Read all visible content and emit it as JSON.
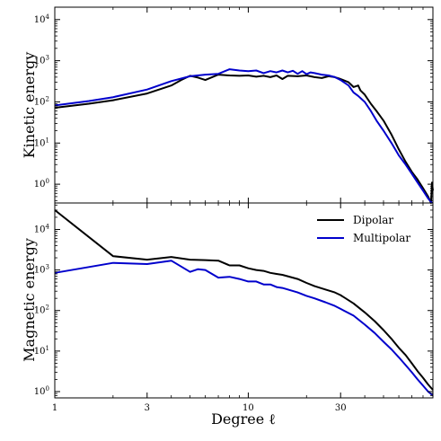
{
  "chart_data": [
    {
      "type": "line",
      "ylabel": "Kinetic energy",
      "xlabel": "",
      "xscale": "log",
      "yscale": "log",
      "xlim": [
        1,
        90
      ],
      "ylim": [
        0.35,
        20000
      ],
      "x_ticks": [],
      "y_ticks": [
        {
          "v": 1,
          "base": "10",
          "exp": "0"
        },
        {
          "v": 10,
          "base": "10",
          "exp": "1"
        },
        {
          "v": 100,
          "base": "10",
          "exp": "2"
        },
        {
          "v": 1000,
          "base": "10",
          "exp": "3"
        },
        {
          "v": 10000,
          "base": "10",
          "exp": "4"
        }
      ],
      "series": [
        {
          "color": "#000000",
          "points": [
            [
              1,
              72
            ],
            [
              1.5,
              90
            ],
            [
              2,
              110
            ],
            [
              3,
              160
            ],
            [
              4,
              250
            ],
            [
              4.5,
              340
            ],
            [
              5,
              430
            ],
            [
              5.5,
              390
            ],
            [
              6,
              340
            ],
            [
              7,
              460
            ],
            [
              8,
              440
            ],
            [
              9,
              430
            ],
            [
              10,
              440
            ],
            [
              11,
              410
            ],
            [
              12,
              430
            ],
            [
              13,
              400
            ],
            [
              14,
              440
            ],
            [
              15,
              360
            ],
            [
              16,
              430
            ],
            [
              18,
              420
            ],
            [
              20,
              440
            ],
            [
              22,
              400
            ],
            [
              24,
              380
            ],
            [
              26,
              420
            ],
            [
              28,
              400
            ],
            [
              30,
              360
            ],
            [
              33,
              300
            ],
            [
              35,
              230
            ],
            [
              37,
              250
            ],
            [
              38,
              190
            ],
            [
              40,
              150
            ],
            [
              43,
              90
            ],
            [
              46,
              60
            ],
            [
              50,
              35
            ],
            [
              55,
              16
            ],
            [
              60,
              7
            ],
            [
              65,
              3.5
            ],
            [
              70,
              2
            ],
            [
              75,
              1.3
            ],
            [
              80,
              0.8
            ],
            [
              85,
              0.5
            ],
            [
              88,
              0.35
            ],
            [
              89,
              1.1
            ],
            [
              90,
              0.7
            ]
          ]
        },
        {
          "color": "#0000cc",
          "points": [
            [
              1,
              82
            ],
            [
              1.5,
              105
            ],
            [
              2,
              130
            ],
            [
              3,
              200
            ],
            [
              4,
              320
            ],
            [
              5,
              420
            ],
            [
              6,
              460
            ],
            [
              7,
              480
            ],
            [
              8,
              620
            ],
            [
              9,
              580
            ],
            [
              10,
              560
            ],
            [
              11,
              580
            ],
            [
              12,
              500
            ],
            [
              13,
              560
            ],
            [
              14,
              520
            ],
            [
              15,
              580
            ],
            [
              16,
              520
            ],
            [
              17,
              570
            ],
            [
              18,
              480
            ],
            [
              19,
              560
            ],
            [
              20,
              470
            ],
            [
              21,
              520
            ],
            [
              22,
              500
            ],
            [
              24,
              460
            ],
            [
              26,
              440
            ],
            [
              28,
              400
            ],
            [
              30,
              340
            ],
            [
              33,
              250
            ],
            [
              35,
              170
            ],
            [
              37,
              140
            ],
            [
              40,
              100
            ],
            [
              43,
              60
            ],
            [
              46,
              35
            ],
            [
              50,
              20
            ],
            [
              55,
              10
            ],
            [
              60,
              5
            ],
            [
              65,
              3
            ],
            [
              70,
              1.8
            ],
            [
              75,
              1.1
            ],
            [
              80,
              0.7
            ],
            [
              85,
              0.45
            ],
            [
              89,
              0.3
            ]
          ]
        }
      ]
    },
    {
      "type": "line",
      "ylabel": "Magnetic energy",
      "xlabel": "Degree ℓ",
      "xscale": "log",
      "yscale": "log",
      "xlim": [
        1,
        90
      ],
      "ylim": [
        0.7,
        45000
      ],
      "x_ticks": [
        {
          "v": 1,
          "label": "1"
        },
        {
          "v": 3,
          "label": "3"
        },
        {
          "v": 10,
          "label": "10"
        },
        {
          "v": 30,
          "label": "30"
        }
      ],
      "y_ticks": [
        {
          "v": 1,
          "base": "10",
          "exp": "0"
        },
        {
          "v": 10,
          "base": "10",
          "exp": "1"
        },
        {
          "v": 100,
          "base": "10",
          "exp": "2"
        },
        {
          "v": 1000,
          "base": "10",
          "exp": "3"
        },
        {
          "v": 10000,
          "base": "10",
          "exp": "4"
        }
      ],
      "legend": {
        "position": "top-right",
        "entries": [
          {
            "name": "Dipolar",
            "color": "#000000"
          },
          {
            "name": "Multipolar",
            "color": "#0000cc"
          }
        ]
      },
      "series": [
        {
          "name": "Dipolar",
          "color": "#000000",
          "points": [
            [
              1,
              30000
            ],
            [
              2,
              2200
            ],
            [
              3,
              1800
            ],
            [
              4,
              2100
            ],
            [
              5,
              1800
            ],
            [
              6,
              1750
            ],
            [
              7,
              1700
            ],
            [
              8,
              1300
            ],
            [
              9,
              1300
            ],
            [
              10,
              1100
            ],
            [
              11,
              1000
            ],
            [
              12,
              950
            ],
            [
              13,
              850
            ],
            [
              14,
              800
            ],
            [
              15,
              760
            ],
            [
              16,
              700
            ],
            [
              18,
              600
            ],
            [
              20,
              480
            ],
            [
              22,
              400
            ],
            [
              25,
              330
            ],
            [
              28,
              280
            ],
            [
              30,
              240
            ],
            [
              35,
              150
            ],
            [
              40,
              90
            ],
            [
              45,
              55
            ],
            [
              50,
              33
            ],
            [
              55,
              20
            ],
            [
              60,
              12
            ],
            [
              65,
              8
            ],
            [
              70,
              5
            ],
            [
              75,
              3.2
            ],
            [
              80,
              2.2
            ],
            [
              85,
              1.5
            ],
            [
              90,
              1.1
            ]
          ]
        },
        {
          "name": "Multipolar",
          "color": "#0000cc",
          "points": [
            [
              1,
              850
            ],
            [
              2,
              1500
            ],
            [
              3,
              1400
            ],
            [
              4,
              1700
            ],
            [
              5,
              900
            ],
            [
              5.5,
              1050
            ],
            [
              6,
              1000
            ],
            [
              7,
              650
            ],
            [
              8,
              680
            ],
            [
              9,
              600
            ],
            [
              10,
              520
            ],
            [
              11,
              520
            ],
            [
              12,
              440
            ],
            [
              13,
              440
            ],
            [
              14,
              380
            ],
            [
              15,
              360
            ],
            [
              16,
              330
            ],
            [
              18,
              280
            ],
            [
              20,
              230
            ],
            [
              22,
              200
            ],
            [
              25,
              160
            ],
            [
              28,
              130
            ],
            [
              30,
              110
            ],
            [
              35,
              75
            ],
            [
              40,
              45
            ],
            [
              45,
              28
            ],
            [
              50,
              17
            ],
            [
              55,
              11
            ],
            [
              60,
              7
            ],
            [
              65,
              4.5
            ],
            [
              70,
              3
            ],
            [
              75,
              2
            ],
            [
              80,
              1.4
            ],
            [
              85,
              1.0
            ],
            [
              90,
              0.8
            ]
          ]
        }
      ]
    }
  ]
}
